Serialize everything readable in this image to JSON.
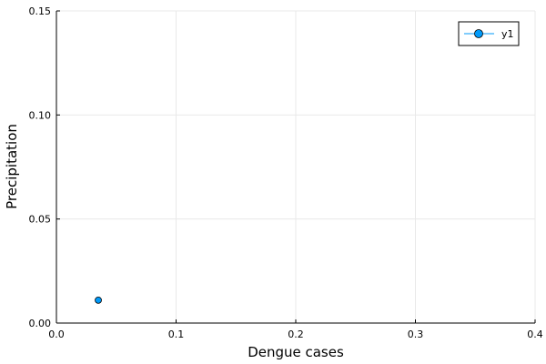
{
  "chart_data": {
    "type": "scatter",
    "title": "",
    "xlabel": "Dengue cases",
    "ylabel": "Precipitation",
    "xlim": [
      0,
      0.4
    ],
    "ylim": [
      0,
      0.15
    ],
    "xticks": [
      0.0,
      0.1,
      0.2,
      0.3,
      0.4
    ],
    "yticks": [
      0.0,
      0.05,
      0.1,
      0.15
    ],
    "xtick_labels": [
      "0.0",
      "0.1",
      "0.2",
      "0.3",
      "0.4"
    ],
    "ytick_labels": [
      "0.00",
      "0.05",
      "0.10",
      "0.15"
    ],
    "grid": true,
    "legend_position": "top-right",
    "series": [
      {
        "name": "y1",
        "color": "#009AFA",
        "marker": "circle",
        "points": [
          {
            "x": 0.035,
            "y": 0.011
          }
        ]
      }
    ]
  }
}
